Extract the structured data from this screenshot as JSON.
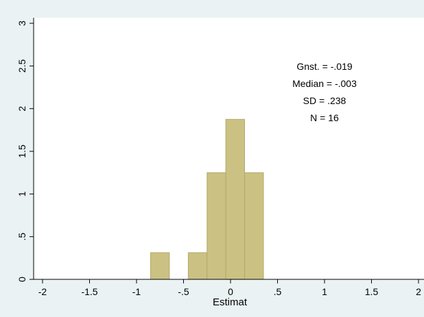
{
  "chart_data": {
    "type": "bar",
    "title": "",
    "xlabel": "Estimat",
    "ylabel": "",
    "xlim": [
      -2.05,
      2.05
    ],
    "ylim": [
      0,
      3.05
    ],
    "x_ticks": [
      "-2",
      "-1.5",
      "-1",
      "-.5",
      "0",
      ".5",
      "1",
      "1.5",
      "2"
    ],
    "x_tick_values": [
      -2,
      -1.5,
      -1,
      -0.5,
      0,
      0.5,
      1,
      1.5,
      2
    ],
    "y_ticks": [
      "0",
      ".5",
      "1",
      "1.5",
      "2",
      "2.5",
      "3"
    ],
    "y_tick_values": [
      0,
      0.5,
      1,
      1.5,
      2,
      2.5,
      3
    ],
    "grid": false,
    "bin_width": 0.2,
    "bins": [
      {
        "x0": -0.85,
        "x1": -0.65,
        "density": 0.3125
      },
      {
        "x0": -0.45,
        "x1": -0.25,
        "density": 0.3125
      },
      {
        "x0": -0.25,
        "x1": -0.05,
        "density": 1.25
      },
      {
        "x0": -0.05,
        "x1": 0.15,
        "density": 1.875
      },
      {
        "x0": 0.15,
        "x1": 0.35,
        "density": 1.25
      }
    ],
    "bar_color": "#cbc183",
    "bar_edge": "#b3a96a",
    "plot_bg": "#ffffff",
    "annotations": [
      "Gnst. = -.019",
      "Median = -.003",
      "SD = .238",
      "N = 16"
    ]
  }
}
